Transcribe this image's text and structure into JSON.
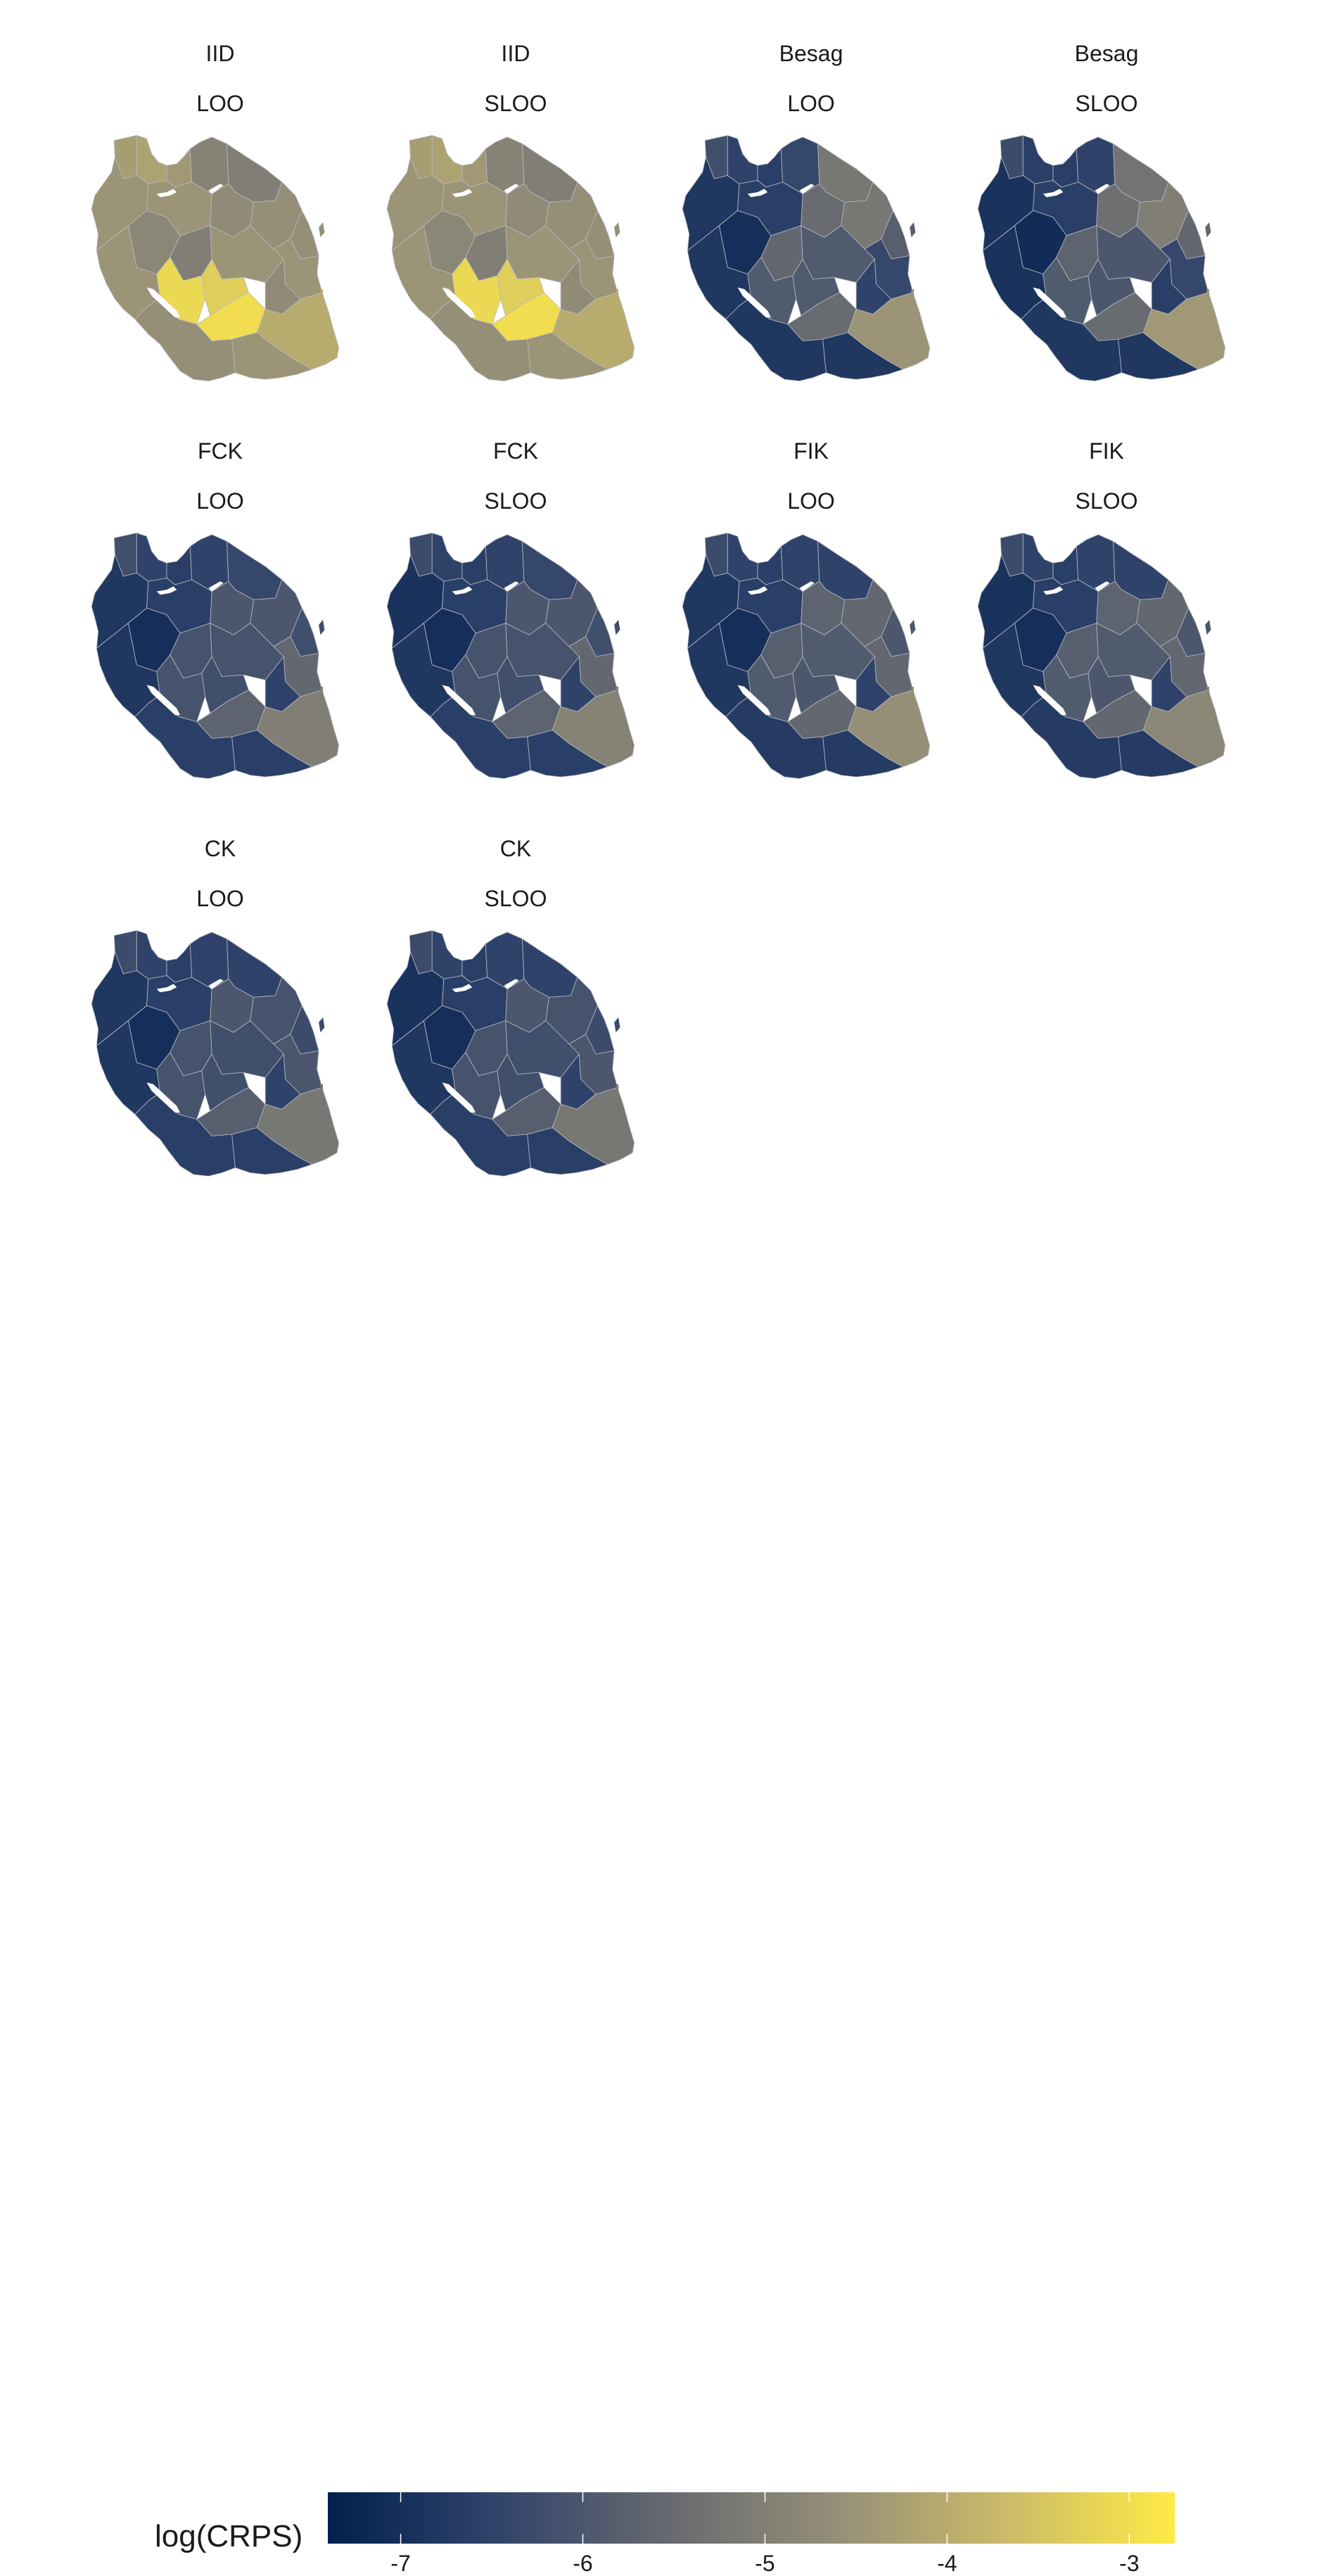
{
  "panels": [
    {
      "model": "IID",
      "method": "LOO"
    },
    {
      "model": "IID",
      "method": "SLOO"
    },
    {
      "model": "Besag",
      "method": "LOO"
    },
    {
      "model": "Besag",
      "method": "SLOO"
    },
    {
      "model": "FCK",
      "method": "LOO"
    },
    {
      "model": "FCK",
      "method": "SLOO"
    },
    {
      "model": "FIK",
      "method": "LOO"
    },
    {
      "model": "FIK",
      "method": "SLOO"
    },
    {
      "model": "CK",
      "method": "LOO"
    },
    {
      "model": "CK",
      "method": "SLOO"
    }
  ],
  "region_values": {
    "IID LOO": [
      -4.3,
      -4.2,
      -4.4,
      -4.9,
      -5.0,
      -4.5,
      -4.5,
      -4.7,
      -4.6,
      -4.6,
      -4.5,
      -4.8,
      -4.5,
      -5.0,
      -4.5,
      -4.7,
      -3.1,
      -3.3,
      -3.0,
      -4.0,
      -4.6,
      -4.5
    ],
    "IID SLOO": [
      -4.3,
      -4.2,
      -4.4,
      -4.9,
      -5.0,
      -4.5,
      -4.5,
      -4.7,
      -4.6,
      -4.6,
      -4.5,
      -4.8,
      -4.5,
      -5.0,
      -4.5,
      -4.7,
      -3.1,
      -3.3,
      -3.0,
      -4.0,
      -4.6,
      -4.5
    ],
    "Besag LOO": [
      -6.2,
      -6.5,
      -6.6,
      -6.4,
      -5.2,
      -6.8,
      -6.6,
      -5.5,
      -5.2,
      -5.8,
      -6.4,
      -7.0,
      -6.8,
      -5.6,
      -5.9,
      -6.5,
      -5.9,
      -5.9,
      -5.5,
      -4.5,
      -6.8,
      -6.8
    ],
    "Besag SLOO": [
      -6.3,
      -6.6,
      -6.6,
      -6.5,
      -5.3,
      -6.9,
      -6.6,
      -5.4,
      -5.0,
      -5.6,
      -6.4,
      -7.1,
      -6.9,
      -5.7,
      -6.0,
      -6.6,
      -5.9,
      -6.0,
      -5.5,
      -4.4,
      -6.8,
      -6.8
    ],
    "FCK LOO": [
      -6.2,
      -6.5,
      -6.6,
      -6.5,
      -6.4,
      -6.8,
      -6.6,
      -6.0,
      -6.0,
      -6.2,
      -5.6,
      -7.0,
      -6.8,
      -6.1,
      -6.1,
      -6.5,
      -6.1,
      -6.2,
      -5.7,
      -5.0,
      -6.6,
      -6.6
    ],
    "FCK SLOO": [
      -6.3,
      -6.5,
      -6.6,
      -6.5,
      -6.4,
      -6.9,
      -6.6,
      -6.0,
      -6.0,
      -6.2,
      -5.6,
      -7.0,
      -6.8,
      -6.1,
      -6.1,
      -6.5,
      -6.1,
      -6.2,
      -5.7,
      -4.9,
      -6.6,
      -6.6
    ],
    "FIK LOO": [
      -6.3,
      -6.5,
      -6.6,
      -6.5,
      -6.5,
      -6.8,
      -6.6,
      -5.7,
      -5.6,
      -6.0,
      -5.6,
      -7.0,
      -6.8,
      -5.8,
      -5.9,
      -6.5,
      -5.9,
      -6.0,
      -5.6,
      -4.6,
      -6.7,
      -6.7
    ],
    "FIK SLOO": [
      -6.3,
      -6.5,
      -6.6,
      -6.5,
      -6.5,
      -6.9,
      -6.6,
      -5.7,
      -5.6,
      -6.0,
      -5.6,
      -7.0,
      -6.8,
      -5.8,
      -5.9,
      -6.5,
      -5.9,
      -6.0,
      -5.6,
      -4.8,
      -6.7,
      -6.7
    ],
    "CK LOO": [
      -6.3,
      -6.5,
      -6.6,
      -6.5,
      -6.5,
      -6.8,
      -6.6,
      -6.0,
      -6.1,
      -6.3,
      -6.0,
      -7.0,
      -6.8,
      -6.1,
      -6.2,
      -6.5,
      -6.1,
      -6.2,
      -5.8,
      -5.2,
      -6.6,
      -6.6
    ],
    "CK SLOO": [
      -6.3,
      -6.5,
      -6.6,
      -6.5,
      -6.5,
      -6.9,
      -6.6,
      -6.0,
      -6.1,
      -6.3,
      -6.0,
      -7.0,
      -6.8,
      -6.1,
      -6.2,
      -6.5,
      -6.1,
      -6.2,
      -5.8,
      -5.2,
      -6.6,
      -6.6
    ]
  },
  "legend": {
    "title": "log(CRPS)",
    "min": -7.4,
    "max": -2.75,
    "ticks": [
      {
        "value": -7,
        "label": "-7"
      },
      {
        "value": -6,
        "label": "-6"
      },
      {
        "value": -5,
        "label": "-5"
      },
      {
        "value": -4,
        "label": "-4"
      },
      {
        "value": -3,
        "label": "-3"
      }
    ],
    "palette": [
      "#00204d",
      "#31446b",
      "#666970",
      "#958f78",
      "#cbba69",
      "#ffea46"
    ]
  }
}
